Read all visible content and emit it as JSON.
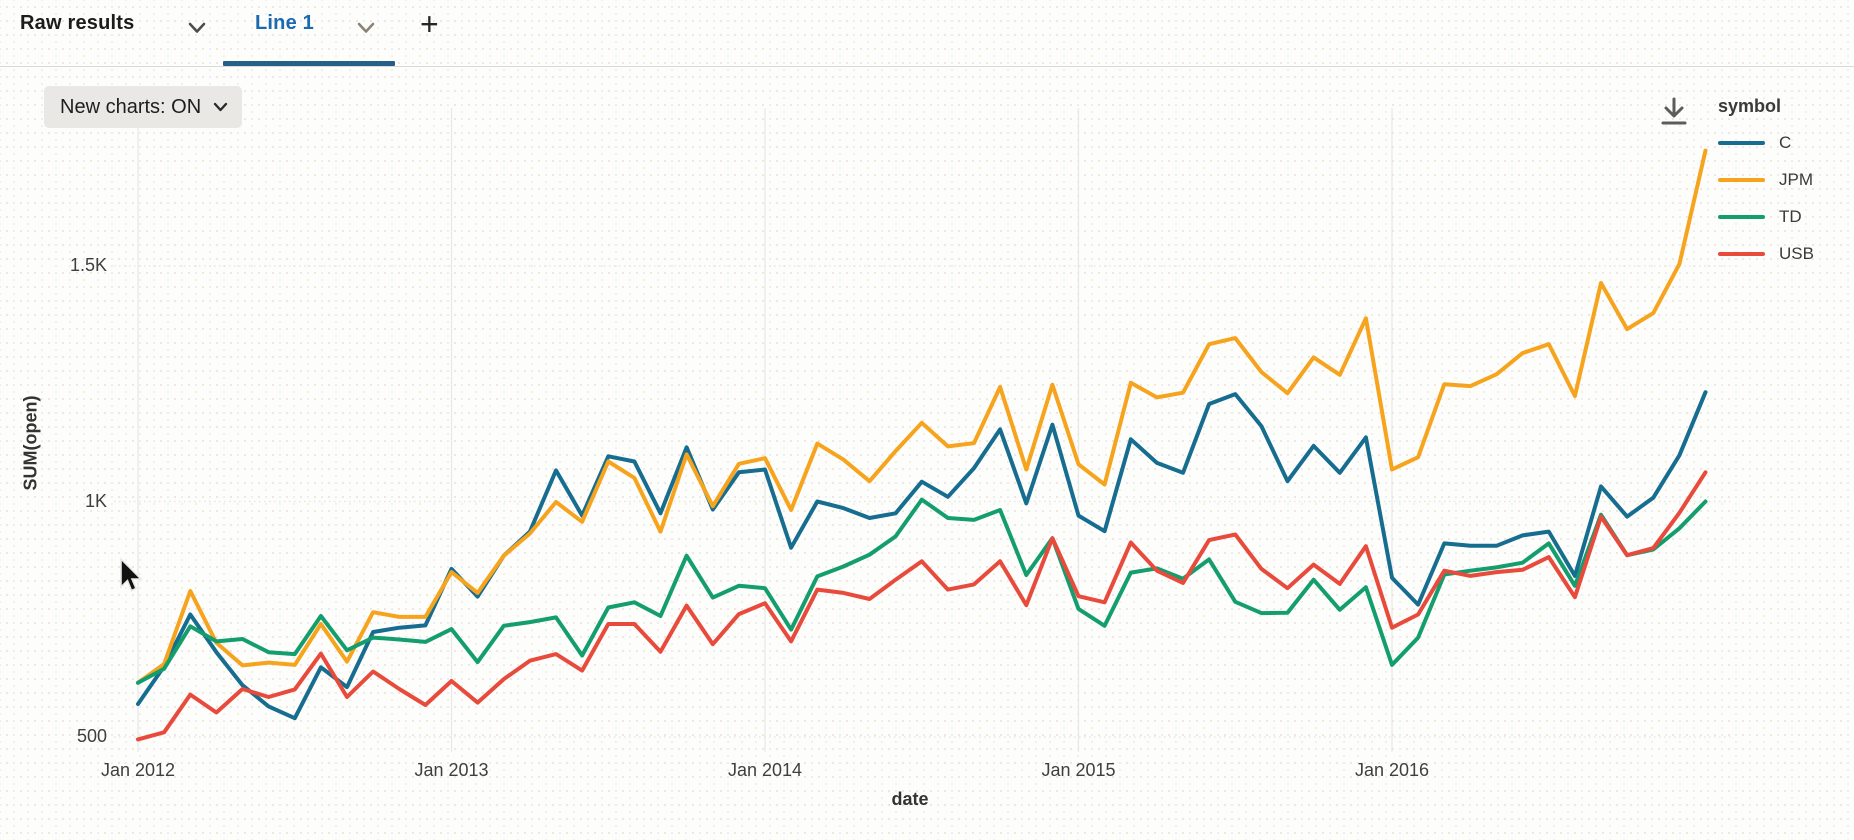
{
  "tab_bar": {
    "tabs": [
      {
        "label": "Raw results",
        "active": false
      },
      {
        "label": "Line 1",
        "active": true
      }
    ],
    "add_tab_label": "+"
  },
  "toolbar": {
    "new_charts_label": "New charts: ON"
  },
  "legend": {
    "title": "symbol"
  },
  "colors": {
    "active_tab_text": "#1b6ab1",
    "active_tab_underline": "#265f87",
    "grid_line": "#e9e9e9",
    "tick_text": "#3f3f3f"
  },
  "chart_data": {
    "type": "line",
    "title": "",
    "xlabel": "date",
    "ylabel": "SUM(open)",
    "x_interval": "month",
    "x_range": [
      "Jan 2012",
      "Jan 2017"
    ],
    "ylim": [
      450,
      1800
    ],
    "grid": true,
    "legend_position": "right",
    "x_ticks": [
      {
        "month_index": 0,
        "label": "Jan 2012"
      },
      {
        "month_index": 12,
        "label": "Jan 2013"
      },
      {
        "month_index": 24,
        "label": "Jan 2014"
      },
      {
        "month_index": 36,
        "label": "Jan 2015"
      },
      {
        "month_index": 48,
        "label": "Jan 2016"
      }
    ],
    "y_ticks": [
      {
        "value": 500,
        "label": "500"
      },
      {
        "value": 1000,
        "label": "1K"
      },
      {
        "value": 1500,
        "label": "1.5K"
      }
    ],
    "series": [
      {
        "name": "C",
        "color": "#166d8f",
        "values": [
          570,
          650,
          760,
          680,
          610,
          565,
          540,
          648,
          606,
          723,
          732,
          737,
          857,
          798,
          885,
          936,
          1066,
          970,
          1096,
          1085,
          975,
          1115,
          983,
          1062,
          1068,
          902,
          1000,
          986,
          965,
          975,
          1042,
          1010,
          1071,
          1153,
          996,
          1163,
          970,
          937,
          1132,
          1082,
          1061,
          1207,
          1228,
          1160,
          1043,
          1118,
          1061,
          1136,
          838,
          781,
          911,
          906,
          906,
          928,
          936,
          842,
          1032,
          968,
          1008,
          1098,
          1232
        ]
      },
      {
        "name": "JPM",
        "color": "#f6a41e",
        "values": [
          615,
          655,
          810,
          700,
          652,
          658,
          653,
          740,
          660,
          765,
          755,
          755,
          850,
          806,
          885,
          932,
          999,
          957,
          1085,
          1050,
          936,
          1100,
          990,
          1080,
          1092,
          982,
          1123,
          1089,
          1043,
          1107,
          1167,
          1117,
          1124,
          1243,
          1068,
          1248,
          1079,
          1036,
          1252,
          1221,
          1231,
          1334,
          1347,
          1275,
          1230,
          1306,
          1269,
          1389,
          1068,
          1094,
          1249,
          1245,
          1270,
          1315,
          1334,
          1224,
          1464,
          1366,
          1400,
          1504,
          1745
        ]
      },
      {
        "name": "TD",
        "color": "#149e6e",
        "values": [
          615,
          645,
          735,
          703,
          708,
          680,
          676,
          757,
          684,
          711,
          707,
          702,
          729,
          659,
          736,
          744,
          754,
          673,
          775,
          786,
          757,
          885,
          796,
          821,
          816,
          728,
          841,
          862,
          887,
          926,
          1004,
          965,
          961,
          982,
          844,
          922,
          772,
          736,
          849,
          858,
          836,
          877,
          787,
          763,
          764,
          834,
          770,
          818,
          653,
          711,
          845,
          853,
          860,
          870,
          911,
          821,
          972,
          886,
          898,
          943,
          1000
        ]
      },
      {
        "name": "USB",
        "color": "#e84a3c",
        "values": [
          495,
          510,
          590,
          552,
          602,
          585,
          601,
          677,
          585,
          639,
          602,
          568,
          619,
          573,
          623,
          662,
          676,
          641,
          740,
          740,
          681,
          779,
          697,
          761,
          784,
          703,
          813,
          806,
          793,
          834,
          873,
          813,
          824,
          873,
          780,
          922,
          799,
          786,
          913,
          853,
          827,
          918,
          930,
          857,
          816,
          866,
          825,
          905,
          732,
          760,
          853,
          842,
          850,
          855,
          882,
          797,
          968,
          886,
          901,
          976,
          1062
        ]
      }
    ]
  }
}
